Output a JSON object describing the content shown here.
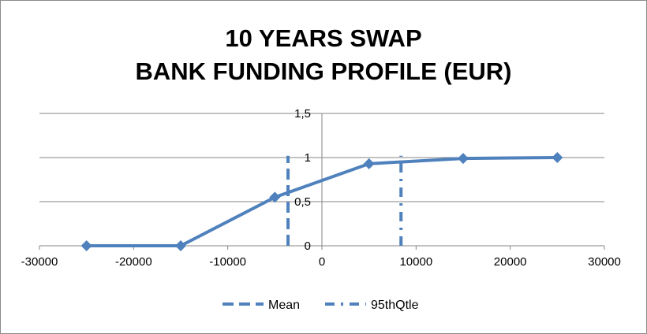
{
  "chart_data": {
    "type": "line",
    "title_line1": "10 YEARS SWAP",
    "title_line2": "BANK FUNDING PROFILE (EUR)",
    "xlabel": "",
    "ylabel": "",
    "xlim": [
      -30000,
      30000
    ],
    "ylim": [
      0,
      1.5
    ],
    "x_ticks": [
      -30000,
      -20000,
      -10000,
      0,
      10000,
      20000,
      30000
    ],
    "x_tick_labels": [
      "-30000",
      "-20000",
      "-10000",
      "0",
      "10000",
      "20000",
      "30000"
    ],
    "y_ticks": [
      0,
      0.5,
      1,
      1.5
    ],
    "y_tick_labels": [
      "0",
      "0,5",
      "1",
      "1,5"
    ],
    "grid": "horizontal major gridlines",
    "legend_position": "bottom",
    "series": [
      {
        "x": [
          -25000,
          -15000,
          -5000,
          5000,
          15000,
          25000
        ],
        "y": [
          0,
          0,
          0.55,
          0.93,
          0.99,
          1.0
        ],
        "color": "#4f81bd",
        "style": "solid",
        "marker": "diamond"
      },
      {
        "name": "Mean",
        "x": [
          -3600,
          -3600
        ],
        "y": [
          0,
          1.02
        ],
        "color": "#4f81bd",
        "style": "dashed",
        "marker": "none"
      },
      {
        "name": "95thQtle",
        "x": [
          8400,
          8400
        ],
        "y": [
          0,
          1.02
        ],
        "color": "#4f81bd",
        "style": "dash-dot",
        "marker": "none"
      }
    ]
  }
}
